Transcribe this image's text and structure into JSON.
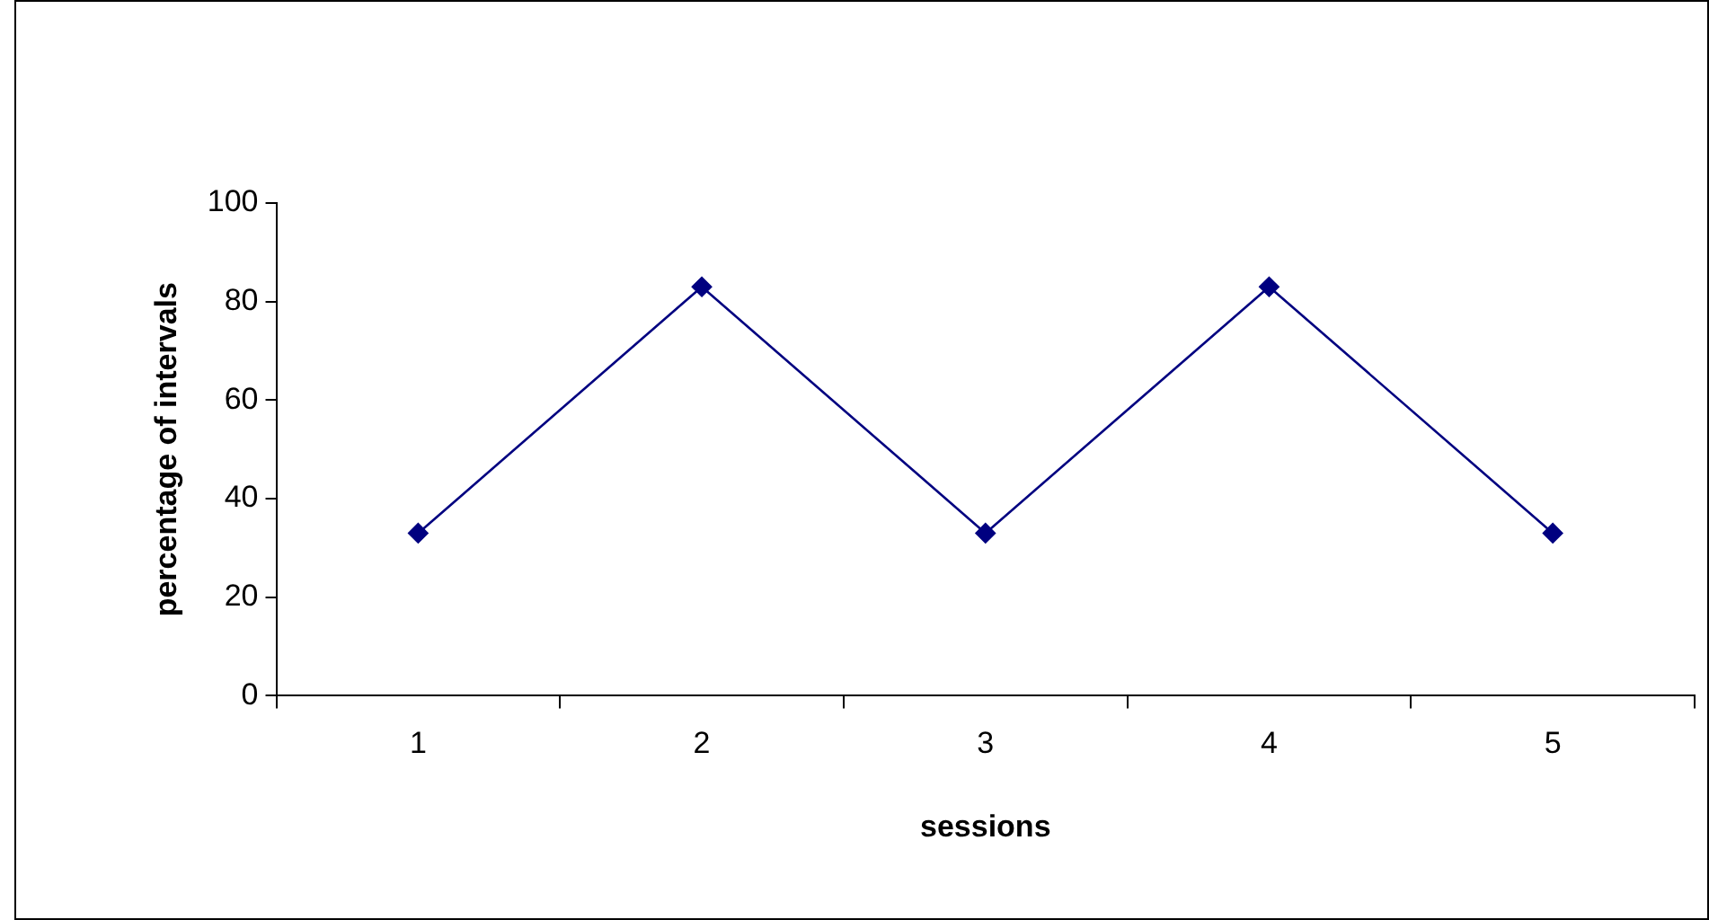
{
  "chart_data": {
    "type": "line",
    "xlabel": "sessions",
    "ylabel": "percentage of intervals",
    "categories": [
      "1",
      "2",
      "3",
      "4",
      "5"
    ],
    "series": [
      {
        "color": "#000080",
        "values": [
          33,
          83,
          33,
          83,
          33
        ]
      }
    ],
    "ylim": [
      0,
      100
    ],
    "yticks": [
      0,
      20,
      40,
      60,
      80,
      100
    ],
    "marker": "diamond",
    "line_style": "solid",
    "legend": false
  }
}
